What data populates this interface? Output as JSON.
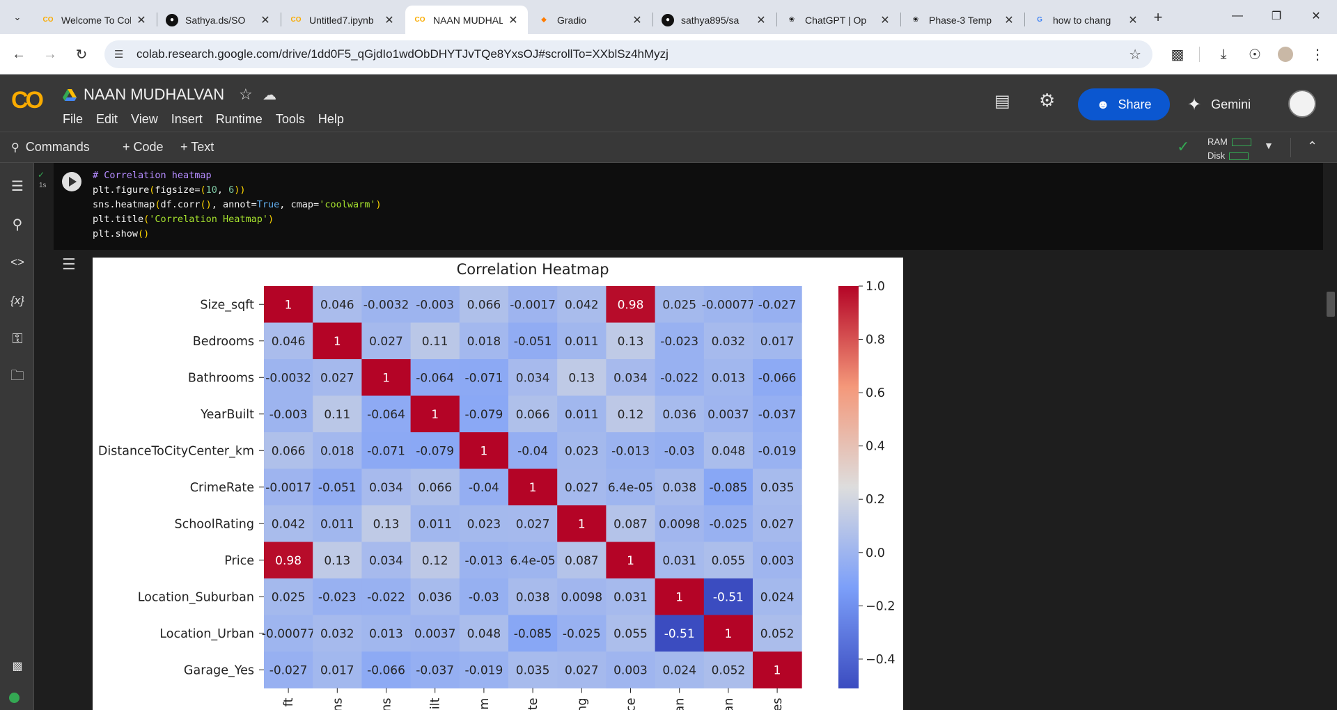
{
  "browser": {
    "tabs": [
      {
        "title": "Welcome To Colab",
        "favicon": "colab-icon",
        "active": false
      },
      {
        "title": "Sathya.ds/SO",
        "favicon": "github-icon",
        "active": false
      },
      {
        "title": "Untitled7.ipynb",
        "favicon": "colab-icon",
        "active": false
      },
      {
        "title": "NAAN MUDHALVAN",
        "favicon": "colab-icon",
        "active": true
      },
      {
        "title": "Gradio",
        "favicon": "gradio-icon",
        "active": false
      },
      {
        "title": "sathya895/sa",
        "favicon": "github-icon",
        "active": false
      },
      {
        "title": "ChatGPT | Op",
        "favicon": "chatgpt-icon",
        "active": false
      },
      {
        "title": "Phase-3 Temp",
        "favicon": "chatgpt-icon",
        "active": false
      },
      {
        "title": "how to chang",
        "favicon": "google-icon",
        "active": false
      }
    ],
    "url": "colab.research.google.com/drive/1dd0F5_qGjdIo1wdObDHYTJvTQe8YxsOJ#scrollTo=XXblSz4hMyzj"
  },
  "colab": {
    "notebook_title": "NAAN MUDHALVAN",
    "menu": [
      "File",
      "Edit",
      "View",
      "Insert",
      "Runtime",
      "Tools",
      "Help"
    ],
    "share_label": "Share",
    "gemini_label": "Gemini",
    "toolbar": {
      "commands_label": "Commands",
      "code_label": "+ Code",
      "text_label": "+ Text",
      "ram_label": "RAM",
      "disk_label": "Disk"
    },
    "cell": {
      "exec_time": "1s",
      "code_lines": [
        "# Correlation heatmap",
        "plt.figure(figsize=(10, 6))",
        "sns.heatmap(df.corr(), annot=True, cmap='coolwarm')",
        "plt.title('Correlation Heatmap')",
        "plt.show()"
      ]
    }
  },
  "colors": {
    "accent": "#0b57d0",
    "colab_orange": "#f9ab00",
    "header_bg": "#383838",
    "status_green": "#34a853"
  },
  "chart_data": {
    "type": "heatmap",
    "title": "Correlation Heatmap",
    "colormap": "coolwarm",
    "rows": [
      "Size_sqft",
      "Bedrooms",
      "Bathrooms",
      "YearBuilt",
      "DistanceToCityCenter_km",
      "CrimeRate",
      "SchoolRating",
      "Price",
      "Location_Suburban",
      "Location_Urban",
      "Garage_Yes"
    ],
    "x_tick_labels_visible": [
      "ft",
      "ns",
      "ns",
      "uilt",
      "m",
      "te",
      "ng",
      "ce",
      "an",
      "an",
      "es"
    ],
    "values": [
      [
        1,
        0.046,
        -0.0032,
        -0.003,
        0.066,
        -0.0017,
        0.042,
        0.98,
        0.025,
        -0.00077,
        -0.027
      ],
      [
        0.046,
        1,
        0.027,
        0.11,
        0.018,
        -0.051,
        0.011,
        0.13,
        -0.023,
        0.032,
        0.017
      ],
      [
        -0.0032,
        0.027,
        1,
        -0.064,
        -0.071,
        0.034,
        0.13,
        0.034,
        -0.022,
        0.013,
        -0.066
      ],
      [
        -0.003,
        0.11,
        -0.064,
        1,
        -0.079,
        0.066,
        0.011,
        0.12,
        0.036,
        0.0037,
        -0.037
      ],
      [
        0.066,
        0.018,
        -0.071,
        -0.079,
        1,
        -0.04,
        0.023,
        -0.013,
        -0.03,
        0.048,
        -0.019
      ],
      [
        -0.0017,
        -0.051,
        0.034,
        0.066,
        -0.04,
        1,
        0.027,
        6.4e-05,
        0.038,
        -0.085,
        0.035
      ],
      [
        0.042,
        0.011,
        0.13,
        0.011,
        0.023,
        0.027,
        1,
        0.087,
        0.0098,
        -0.025,
        0.027
      ],
      [
        0.98,
        0.13,
        0.034,
        0.12,
        -0.013,
        6.4e-05,
        0.087,
        1,
        0.031,
        0.055,
        0.003
      ],
      [
        0.025,
        -0.023,
        -0.022,
        0.036,
        -0.03,
        0.038,
        0.0098,
        0.031,
        1,
        -0.51,
        0.024
      ],
      [
        -0.00077,
        0.032,
        0.013,
        0.0037,
        0.048,
        -0.085,
        -0.025,
        0.055,
        -0.51,
        1,
        0.052
      ],
      [
        -0.027,
        0.017,
        -0.066,
        -0.037,
        -0.019,
        0.035,
        0.027,
        0.003,
        0.024,
        0.052,
        1
      ]
    ],
    "annotations": [
      [
        "1",
        "0.046",
        "-0.0032",
        "-0.003",
        "0.066",
        "-0.0017",
        "0.042",
        "0.98",
        "0.025",
        "-0.00077",
        "-0.027"
      ],
      [
        "0.046",
        "1",
        "0.027",
        "0.11",
        "0.018",
        "-0.051",
        "0.011",
        "0.13",
        "-0.023",
        "0.032",
        "0.017"
      ],
      [
        "-0.0032",
        "0.027",
        "1",
        "-0.064",
        "-0.071",
        "0.034",
        "0.13",
        "0.034",
        "-0.022",
        "0.013",
        "-0.066"
      ],
      [
        "-0.003",
        "0.11",
        "-0.064",
        "1",
        "-0.079",
        "0.066",
        "0.011",
        "0.12",
        "0.036",
        "0.0037",
        "-0.037"
      ],
      [
        "0.066",
        "0.018",
        "-0.071",
        "-0.079",
        "1",
        "-0.04",
        "0.023",
        "-0.013",
        "-0.03",
        "0.048",
        "-0.019"
      ],
      [
        "-0.0017",
        "-0.051",
        "0.034",
        "0.066",
        "-0.04",
        "1",
        "0.027",
        "6.4e-05",
        "0.038",
        "-0.085",
        "0.035"
      ],
      [
        "0.042",
        "0.011",
        "0.13",
        "0.011",
        "0.023",
        "0.027",
        "1",
        "0.087",
        "0.0098",
        "-0.025",
        "0.027"
      ],
      [
        "0.98",
        "0.13",
        "0.034",
        "0.12",
        "-0.013",
        "6.4e-05",
        "0.087",
        "1",
        "0.031",
        "0.055",
        "0.003"
      ],
      [
        "0.025",
        "-0.023",
        "-0.022",
        "0.036",
        "-0.03",
        "0.038",
        "0.0098",
        "0.031",
        "1",
        "-0.51",
        "0.024"
      ],
      [
        "-0.00077",
        "0.032",
        "0.013",
        "0.0037",
        "0.048",
        "-0.085",
        "-0.025",
        "0.055",
        "-0.51",
        "1",
        "0.052"
      ],
      [
        "-0.027",
        "0.017",
        "-0.066",
        "-0.037",
        "-0.019",
        "0.035",
        "0.027",
        "0.003",
        "0.024",
        "0.052",
        "1"
      ]
    ],
    "colorbar_ticks": [
      "1.0",
      "0.8",
      "0.6",
      "0.4",
      "0.2",
      "0.0",
      "−0.2",
      "−0.4"
    ],
    "colorbar_range": [
      -0.51,
      1.0
    ]
  }
}
